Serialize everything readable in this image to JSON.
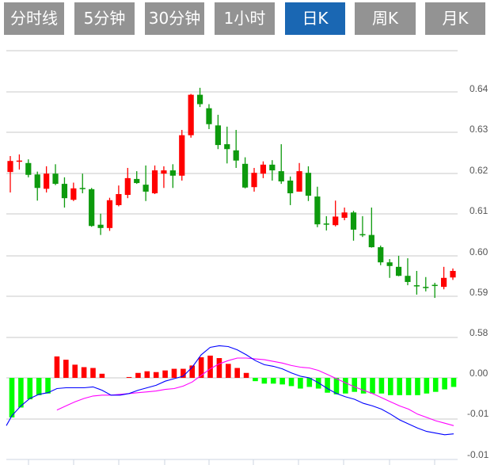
{
  "tabs": [
    {
      "label": "分时线",
      "active": false
    },
    {
      "label": "5分钟",
      "active": false
    },
    {
      "label": "30分钟",
      "active": false
    },
    {
      "label": "1小时",
      "active": false
    },
    {
      "label": "日K",
      "active": true
    },
    {
      "label": "周K",
      "active": false
    },
    {
      "label": "月K",
      "active": false
    }
  ],
  "colors": {
    "up": "#ff0000",
    "down": "#0d9a0d",
    "hist_up": "#ff0000",
    "hist_down": "#00ff00",
    "dif": "#0000ff",
    "dea": "#ff00ff",
    "active_tab": "#1a67b3",
    "tab": "#939393"
  },
  "chart_data": [
    {
      "type": "candlestick",
      "title": "",
      "y_ticks": [
        "0.64",
        "0.63",
        "0.62",
        "0.61",
        "0.60",
        "0.59",
        "0.58"
      ],
      "ylim": [
        0.58,
        0.65
      ],
      "grid": true,
      "ohlc": [
        [
          0.6204,
          0.6243,
          0.6154,
          0.6231
        ],
        [
          0.623,
          0.6247,
          0.621,
          0.6232
        ],
        [
          0.6226,
          0.6235,
          0.6191,
          0.6197
        ],
        [
          0.6198,
          0.6205,
          0.6134,
          0.6165
        ],
        [
          0.6163,
          0.6218,
          0.6154,
          0.62
        ],
        [
          0.62,
          0.6223,
          0.6172,
          0.6175
        ],
        [
          0.6175,
          0.6191,
          0.6117,
          0.614
        ],
        [
          0.6136,
          0.6178,
          0.6133,
          0.6164
        ],
        [
          0.6165,
          0.62,
          0.6152,
          0.6163
        ],
        [
          0.6162,
          0.6165,
          0.607,
          0.6072
        ],
        [
          0.6075,
          0.6102,
          0.605,
          0.6067
        ],
        [
          0.6067,
          0.6141,
          0.606,
          0.6135
        ],
        [
          0.6123,
          0.6171,
          0.612,
          0.615
        ],
        [
          0.6148,
          0.6214,
          0.614,
          0.6189
        ],
        [
          0.6187,
          0.6206,
          0.6175,
          0.6177
        ],
        [
          0.6173,
          0.622,
          0.6133,
          0.6156
        ],
        [
          0.6152,
          0.622,
          0.615,
          0.6208
        ],
        [
          0.62,
          0.6218,
          0.6165,
          0.6208
        ],
        [
          0.6208,
          0.6223,
          0.6165,
          0.6195
        ],
        [
          0.6195,
          0.6307,
          0.6183,
          0.6294
        ],
        [
          0.6294,
          0.6395,
          0.6288,
          0.6393
        ],
        [
          0.6393,
          0.641,
          0.6363,
          0.637
        ],
        [
          0.636,
          0.637,
          0.6309,
          0.6321
        ],
        [
          0.6318,
          0.6344,
          0.626,
          0.627
        ],
        [
          0.6272,
          0.6315,
          0.6225,
          0.626
        ],
        [
          0.6257,
          0.6307,
          0.6214,
          0.6232
        ],
        [
          0.6224,
          0.624,
          0.6164,
          0.6166
        ],
        [
          0.6167,
          0.6214,
          0.6156,
          0.6202
        ],
        [
          0.62,
          0.623,
          0.6189,
          0.6222
        ],
        [
          0.6222,
          0.6233,
          0.6183,
          0.6208
        ],
        [
          0.6206,
          0.6272,
          0.6175,
          0.6181
        ],
        [
          0.6183,
          0.6193,
          0.6123,
          0.6152
        ],
        [
          0.6156,
          0.6226,
          0.6156,
          0.6206
        ],
        [
          0.6202,
          0.6218,
          0.6133,
          0.6146
        ],
        [
          0.6144,
          0.6168,
          0.6069,
          0.6076
        ],
        [
          0.6078,
          0.6096,
          0.6061,
          0.6076
        ],
        [
          0.6074,
          0.6134,
          0.6071,
          0.6095
        ],
        [
          0.6092,
          0.6117,
          0.6086,
          0.6105
        ],
        [
          0.6105,
          0.6109,
          0.6036,
          0.6063
        ],
        [
          0.6052,
          0.6096,
          0.6045,
          0.605
        ],
        [
          0.605,
          0.6117,
          0.6019,
          0.602
        ],
        [
          0.602,
          0.6024,
          0.5976,
          0.5983
        ],
        [
          0.5983,
          0.5991,
          0.5945,
          0.5974
        ],
        [
          0.5972,
          0.5999,
          0.5949,
          0.595
        ],
        [
          0.595,
          0.5993,
          0.5927,
          0.5935
        ],
        [
          0.5927,
          0.5962,
          0.5904,
          0.5925
        ],
        [
          0.5923,
          0.5947,
          0.5912,
          0.5921
        ],
        [
          0.5928,
          0.5933,
          0.5896,
          0.5927
        ],
        [
          0.5923,
          0.5972,
          0.5917,
          0.5945
        ],
        [
          0.5946,
          0.5968,
          0.594,
          0.5962
        ]
      ]
    },
    {
      "type": "macd",
      "y_ticks": [
        "0.00",
        "-0.01",
        "-0.01"
      ],
      "ylim": [
        -0.01,
        0.005
      ],
      "hist": [
        -0.0048,
        -0.0036,
        -0.0026,
        -0.0021,
        -0.0019,
        0.0026,
        0.0022,
        0.0016,
        0.0013,
        0.0012,
        0.0005,
        0.0,
        0.0,
        0.0001,
        0.0006,
        0.0008,
        0.0007,
        0.0009,
        0.0011,
        0.0011,
        0.0015,
        0.0025,
        0.0027,
        0.0024,
        0.0017,
        0.0012,
        0.0006,
        -0.0004,
        -0.0007,
        -0.0007,
        -0.0008,
        -0.001,
        -0.0013,
        -0.0011,
        -0.0013,
        -0.0018,
        -0.002,
        -0.0019,
        -0.0017,
        -0.0019,
        -0.0019,
        -0.0019,
        -0.0021,
        -0.0021,
        -0.0021,
        -0.0021,
        -0.0019,
        -0.0017,
        -0.0014,
        -0.0011
      ],
      "dif": [
        -0.0046,
        -0.0034,
        -0.0025,
        -0.002,
        -0.0018,
        -0.0013,
        -0.0012,
        -0.0012,
        -0.0012,
        -0.0011,
        -0.0015,
        -0.0021,
        -0.0021,
        -0.0019,
        -0.0015,
        -0.0012,
        -0.0009,
        -0.0004,
        -0.0001,
        0.0002,
        0.0013,
        0.0028,
        0.0037,
        0.0039,
        0.0038,
        0.0034,
        0.0028,
        0.0021,
        0.0016,
        0.0014,
        0.0011,
        0.0006,
        0.0002,
        0.0,
        -0.0006,
        -0.0013,
        -0.0019,
        -0.0023,
        -0.0026,
        -0.0031,
        -0.0034,
        -0.0038,
        -0.0044,
        -0.0051,
        -0.0056,
        -0.0061,
        -0.0065,
        -0.0067,
        -0.0069,
        -0.0068
      ],
      "dea": [
        null,
        null,
        null,
        null,
        null,
        -0.0039,
        -0.0034,
        -0.0029,
        -0.0025,
        -0.0022,
        -0.0021,
        -0.0021,
        -0.002,
        -0.0019,
        -0.0018,
        -0.0017,
        -0.0016,
        -0.0014,
        -0.0013,
        -0.001,
        -0.0005,
        0.0003,
        0.0011,
        0.0017,
        0.0021,
        0.0024,
        0.0024,
        0.0023,
        0.0022,
        0.002,
        0.0018,
        0.0015,
        0.0013,
        0.0012,
        0.0009,
        0.0004,
        -0.0001,
        -0.0006,
        -0.0011,
        -0.0015,
        -0.0019,
        -0.0024,
        -0.0029,
        -0.0034,
        -0.0038,
        -0.0044,
        -0.0048,
        -0.0052,
        -0.0055,
        -0.0058
      ]
    }
  ]
}
